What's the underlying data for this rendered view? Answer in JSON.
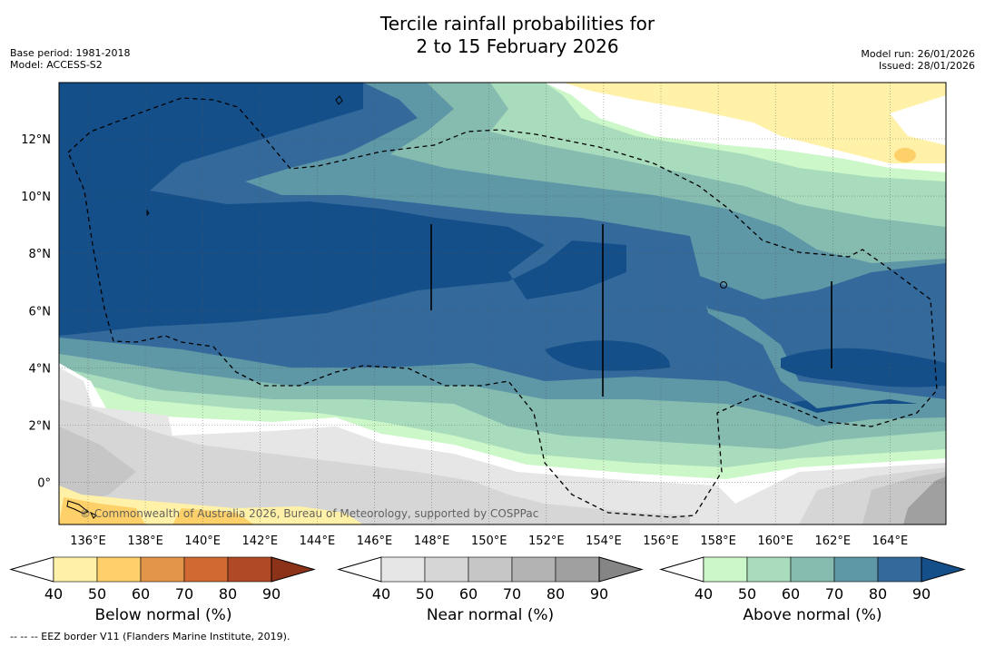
{
  "header": {
    "title_line1": "Tercile rainfall probabilities for",
    "title_line2": "2 to 15 February 2026",
    "base_period": "Base period: 1981-2018",
    "model": "Model: ACCESS-S2",
    "model_run": "Model run: 26/01/2026",
    "issued": "Issued: 28/01/2026"
  },
  "map": {
    "lon_labels": [
      "136°E",
      "138°E",
      "140°E",
      "142°E",
      "144°E",
      "146°E",
      "148°E",
      "150°E",
      "152°E",
      "154°E",
      "156°E",
      "158°E",
      "160°E",
      "162°E",
      "164°E"
    ],
    "lat_labels": [
      "12°N",
      "10°N",
      "8°N",
      "6°N",
      "4°N",
      "2°N",
      "0°"
    ],
    "copyright": "© Commonwealth of Australia 2026, Bureau of Meteorology, supported by COSPPac"
  },
  "colorbars": [
    {
      "name": "below-normal",
      "label": "Below normal (%)",
      "ticks": [
        "40",
        "50",
        "60",
        "70",
        "80",
        "90"
      ],
      "colors": [
        "#fff1a8",
        "#fdd06a",
        "#e3954a",
        "#d06a32",
        "#b04a26",
        "#8b3219"
      ]
    },
    {
      "name": "near-normal",
      "label": "Near normal (%)",
      "ticks": [
        "40",
        "50",
        "60",
        "70",
        "80",
        "90"
      ],
      "colors": [
        "#e6e6e6",
        "#d6d6d6",
        "#c6c6c6",
        "#b3b3b3",
        "#a0a0a0",
        "#858585"
      ]
    },
    {
      "name": "above-normal",
      "label": "Above normal (%)",
      "ticks": [
        "40",
        "50",
        "60",
        "70",
        "80",
        "90"
      ],
      "colors": [
        "#ccf7c8",
        "#a9dcbd",
        "#86bcb0",
        "#5e97a6",
        "#336a9b",
        "#154f8a"
      ]
    }
  ],
  "footnote": "--  --  -- EEZ border V11 (Flanders Marine Institute, 2019)."
}
